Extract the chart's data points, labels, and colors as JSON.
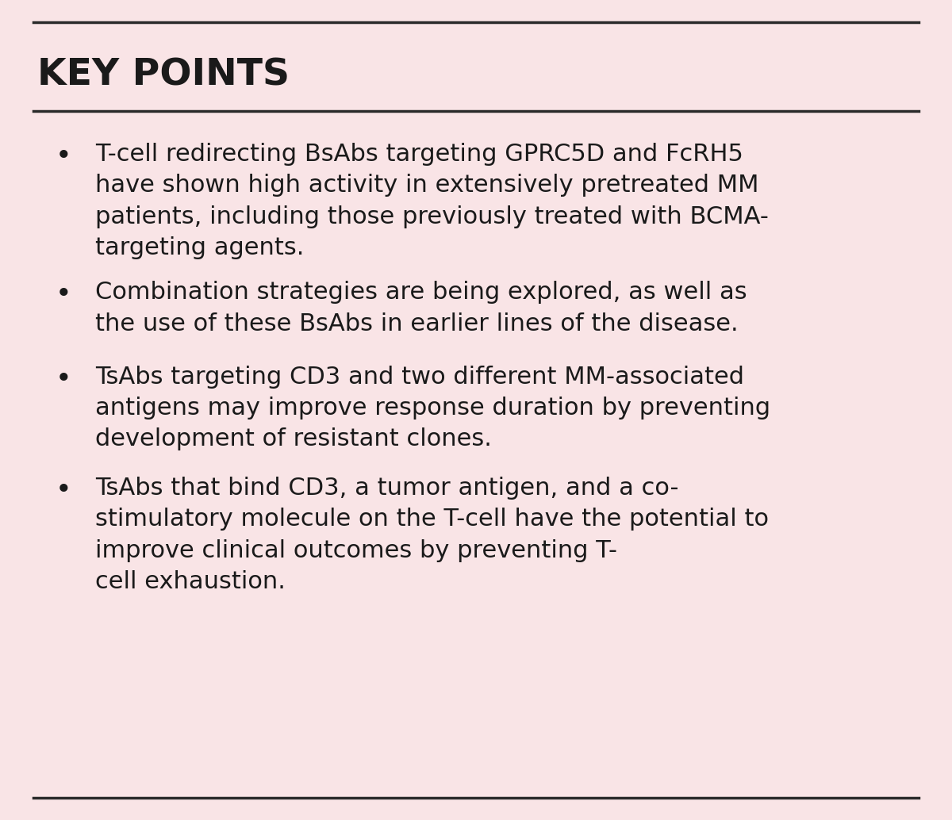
{
  "background_color": "#f9e4e6",
  "line_color": "#2a2a2a",
  "line_width": 2.5,
  "title": "KEY POINTS",
  "title_fontsize": 34,
  "title_font_weight": "bold",
  "bullet_fontsize": 22,
  "bullet_color": "#1a1a1a",
  "bullets": [
    "T-cell redirecting BsAbs targeting GPRC5D and FcRH5\nhave shown high activity in extensively pretreated MM\npatients, including those previously treated with BCMA-\ntargeting agents.",
    "Combination strategies are being explored, as well as\nthe use of these BsAbs in earlier lines of the disease.",
    "TsAbs targeting CD3 and two different MM-associated\nantigens may improve response duration by preventing\ndevelopment of resistant clones.",
    "TsAbs that bind CD3, a tumor antigen, and a co-\nstimulatory molecule on the T-cell have the potential to\nimprove clinical outcomes by preventing T-\ncell exhaustion."
  ],
  "fig_width": 12.0,
  "fig_height": 10.34,
  "dpi": 100
}
